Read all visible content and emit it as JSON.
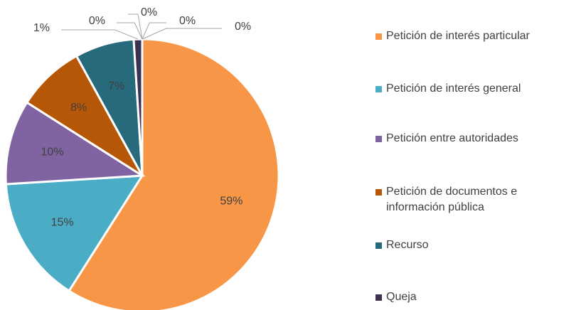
{
  "chart_data": {
    "type": "pie",
    "categories": [
      "Petición de interés particular",
      "Petición de interés general",
      "Petición entre autoridades",
      "Petición de documentos e información pública",
      "Recurso",
      "Queja",
      null,
      null,
      null,
      null
    ],
    "values": [
      59,
      15,
      10,
      8,
      7,
      1,
      0,
      0,
      0,
      0
    ],
    "value_labels": [
      "59%",
      "15%",
      "10%",
      "8%",
      "7%",
      "1%",
      "0%",
      "0%",
      "0%",
      "0%"
    ],
    "colors": [
      "#f79646",
      "#4bacc6",
      "#8064a2",
      "#b65708",
      "#276a7c",
      "#3f3151",
      "#a9a9a9",
      "#ffc000",
      "#5b9bd5",
      "#70ad47"
    ],
    "legend": "right"
  }
}
